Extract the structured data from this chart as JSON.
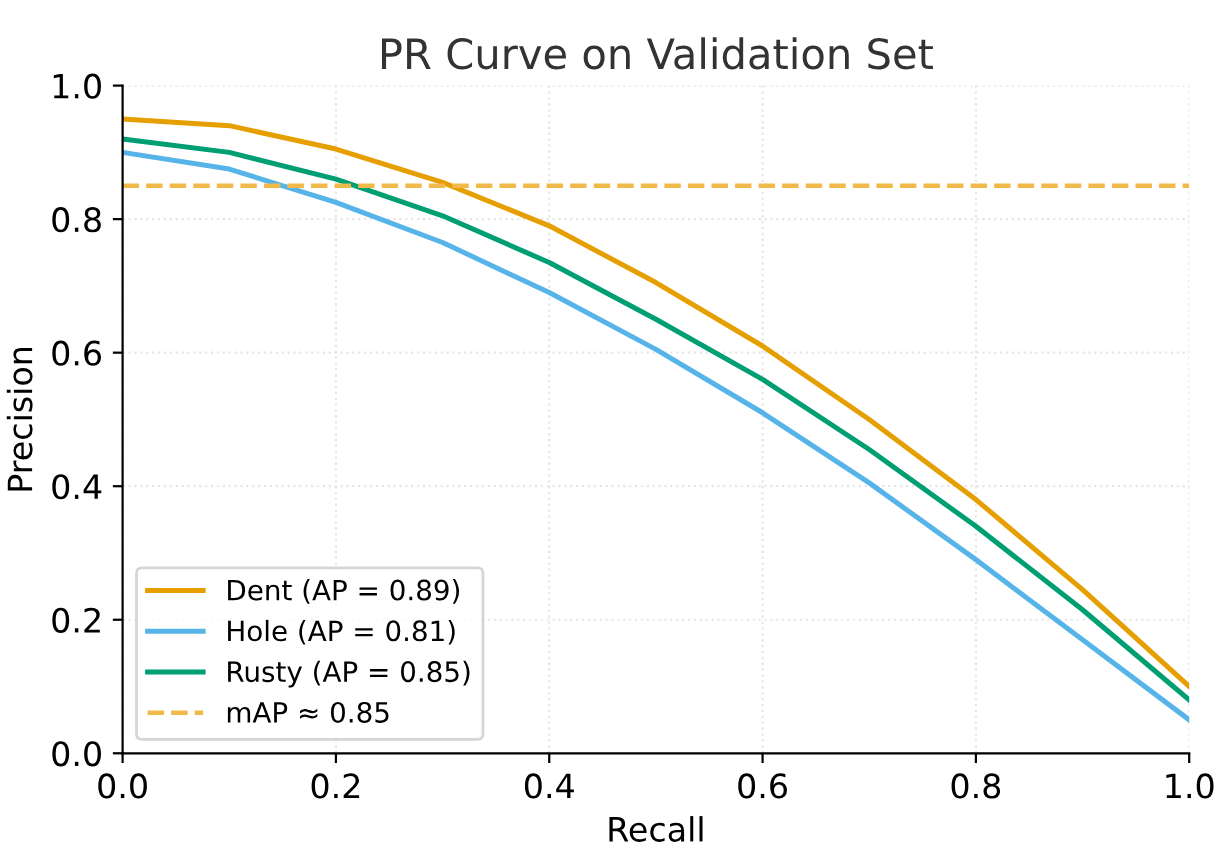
{
  "chart_data": {
    "type": "line",
    "title": "PR Curve on Validation Set",
    "xlabel": "Recall",
    "ylabel": "Precision",
    "x": [
      0,
      0.1,
      0.2,
      0.3,
      0.4,
      0.5,
      0.6,
      0.7,
      0.8,
      0.9,
      1.0
    ],
    "series": [
      {
        "name": "Dent (AP = 0.89)",
        "color": "#e69f00",
        "values": [
          0.95,
          0.94,
          0.905,
          0.855,
          0.79,
          0.705,
          0.61,
          0.5,
          0.38,
          0.245,
          0.1
        ]
      },
      {
        "name": "Hole (AP = 0.81)",
        "color": "#56b4e9",
        "values": [
          0.9,
          0.875,
          0.825,
          0.765,
          0.69,
          0.605,
          0.51,
          0.405,
          0.29,
          0.17,
          0.05
        ]
      },
      {
        "name": "Rusty (AP = 0.85)",
        "color": "#009e73",
        "values": [
          0.92,
          0.9,
          0.86,
          0.805,
          0.735,
          0.65,
          0.56,
          0.455,
          0.34,
          0.215,
          0.08
        ]
      }
    ],
    "ref_lines": [
      {
        "axis": "y",
        "value": 0.85,
        "label": "mAP ≈ 0.85",
        "color": "#f0b94a",
        "line_style": "dashed"
      }
    ],
    "xlim": [
      0,
      1
    ],
    "ylim": [
      0,
      1
    ],
    "xticks": [
      {
        "value": 0,
        "label": "0.0"
      },
      0.2,
      0.4,
      0.6,
      0.8,
      {
        "value": 1,
        "label": "1.0"
      }
    ],
    "yticks": [
      {
        "value": 0,
        "label": "0.0"
      },
      0.2,
      0.4,
      0.6,
      0.8,
      {
        "value": 1,
        "label": "1.0"
      }
    ],
    "grid": true,
    "legend": "bottom left",
    "line_style": "solid",
    "marker": "none"
  }
}
